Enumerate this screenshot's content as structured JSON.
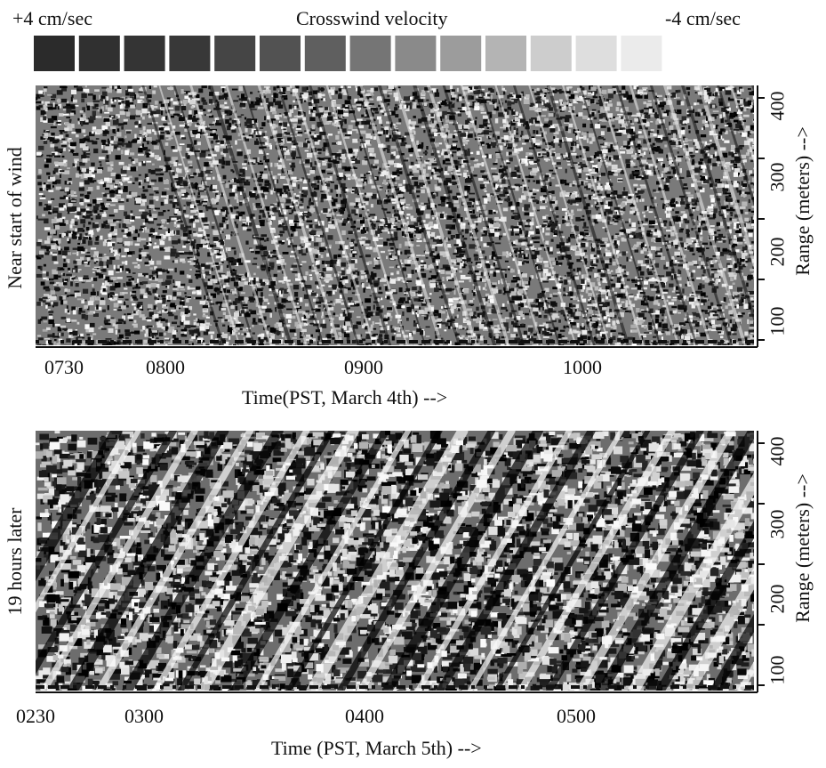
{
  "legend": {
    "left_label": "+4 cm/sec",
    "title": "Crosswind velocity",
    "right_label": "-4 cm/sec",
    "swatches": [
      "#2b2b2b",
      "#303030",
      "#343434",
      "#383838",
      "#454545",
      "#525252",
      "#5f5f5f",
      "#757575",
      "#8a8a8a",
      "#9c9c9c",
      "#b4b4b4",
      "#cdcdcd",
      "#dedede",
      "#ebebeb"
    ]
  },
  "chart_data": [
    {
      "type": "heatmap",
      "title": "Crosswind velocity",
      "side_label": "Near start of wind",
      "xlabel": "Time(PST, March 4th) -->",
      "ylabel": "Range (meters) -->",
      "x_ticks": [
        "0730",
        "0800",
        "0900",
        "1000"
      ],
      "y_ticks": [
        "100",
        "200",
        "300",
        "400"
      ],
      "ylim": [
        80,
        400
      ],
      "colorbar_range": [
        "+4 cm/sec",
        "-4 cm/sec"
      ],
      "texture": "fine-grained streaks slanting down to the right"
    },
    {
      "type": "heatmap",
      "side_label": "19 hours later",
      "xlabel": "Time (PST, March 5th) -->",
      "ylabel": "Range (meters) -->",
      "x_ticks": [
        "0230",
        "0300",
        "0400",
        "0500"
      ],
      "y_ticks": [
        "100",
        "200",
        "300",
        "400"
      ],
      "ylim": [
        80,
        400
      ],
      "colorbar_range": [
        "+4 cm/sec",
        "-4 cm/sec"
      ],
      "texture": "coarse high-contrast streaks slanting up to the right"
    }
  ]
}
